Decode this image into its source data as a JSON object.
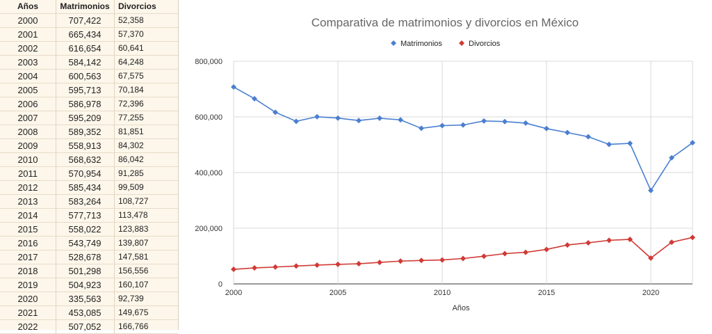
{
  "table": {
    "headers": {
      "year": "Años",
      "marriages": "Matrimonios",
      "divorces": "Divorcios"
    },
    "rows": [
      {
        "year": "2000",
        "marriages": "707,422",
        "divorces": "52,358"
      },
      {
        "year": "2001",
        "marriages": "665,434",
        "divorces": "57,370"
      },
      {
        "year": "2002",
        "marriages": "616,654",
        "divorces": "60,641"
      },
      {
        "year": "2003",
        "marriages": "584,142",
        "divorces": "64,248"
      },
      {
        "year": "2004",
        "marriages": "600,563",
        "divorces": "67,575"
      },
      {
        "year": "2005",
        "marriages": "595,713",
        "divorces": "70,184"
      },
      {
        "year": "2006",
        "marriages": "586,978",
        "divorces": "72,396"
      },
      {
        "year": "2007",
        "marriages": "595,209",
        "divorces": "77,255"
      },
      {
        "year": "2008",
        "marriages": "589,352",
        "divorces": "81,851"
      },
      {
        "year": "2009",
        "marriages": "558,913",
        "divorces": "84,302"
      },
      {
        "year": "2010",
        "marriages": "568,632",
        "divorces": "86,042"
      },
      {
        "year": "2011",
        "marriages": "570,954",
        "divorces": "91,285"
      },
      {
        "year": "2012",
        "marriages": "585,434",
        "divorces": "99,509"
      },
      {
        "year": "2013",
        "marriages": "583,264",
        "divorces": "108,727"
      },
      {
        "year": "2014",
        "marriages": "577,713",
        "divorces": "113,478"
      },
      {
        "year": "2015",
        "marriages": "558,022",
        "divorces": "123,883"
      },
      {
        "year": "2016",
        "marriages": "543,749",
        "divorces": "139,807"
      },
      {
        "year": "2017",
        "marriages": "528,678",
        "divorces": "147,581"
      },
      {
        "year": "2018",
        "marriages": "501,298",
        "divorces": "156,556"
      },
      {
        "year": "2019",
        "marriages": "504,923",
        "divorces": "160,107"
      },
      {
        "year": "2020",
        "marriages": "335,563",
        "divorces": "92,739"
      },
      {
        "year": "2021",
        "marriages": "453,085",
        "divorces": "149,675"
      },
      {
        "year": "2022",
        "marriages": "507,052",
        "divorces": "166,766"
      }
    ]
  },
  "chart_data": {
    "type": "line",
    "title": "Comparativa de matrimonios y divorcios en México",
    "xlabel": "Años",
    "ylabel": "",
    "x": [
      2000,
      2001,
      2002,
      2003,
      2004,
      2005,
      2006,
      2007,
      2008,
      2009,
      2010,
      2011,
      2012,
      2013,
      2014,
      2015,
      2016,
      2017,
      2018,
      2019,
      2020,
      2021,
      2022
    ],
    "xlim": [
      2000,
      2022
    ],
    "ylim": [
      0,
      800000
    ],
    "x_ticks": [
      2000,
      2005,
      2010,
      2015,
      2020
    ],
    "x_tick_labels": [
      "2000",
      "2005",
      "2010",
      "2015",
      "2020"
    ],
    "y_ticks": [
      0,
      200000,
      400000,
      600000,
      800000
    ],
    "y_tick_labels": [
      "0",
      "200,000",
      "400,000",
      "600,000",
      "800,000"
    ],
    "grid": true,
    "legend": "top-center",
    "series": [
      {
        "name": "Matrimonios",
        "color": "#4a7fd0",
        "marker": "diamond",
        "values": [
          707422,
          665434,
          616654,
          584142,
          600563,
          595713,
          586978,
          595209,
          589352,
          558913,
          568632,
          570954,
          585434,
          583264,
          577713,
          558022,
          543749,
          528678,
          501298,
          504923,
          335563,
          453085,
          507052
        ]
      },
      {
        "name": "Divorcios",
        "color": "#d03a35",
        "marker": "diamond",
        "values": [
          52358,
          57370,
          60641,
          64248,
          67575,
          70184,
          72396,
          77255,
          81851,
          84302,
          86042,
          91285,
          99509,
          108727,
          113478,
          123883,
          139807,
          147581,
          156556,
          160107,
          92739,
          149675,
          166766
        ]
      }
    ]
  }
}
